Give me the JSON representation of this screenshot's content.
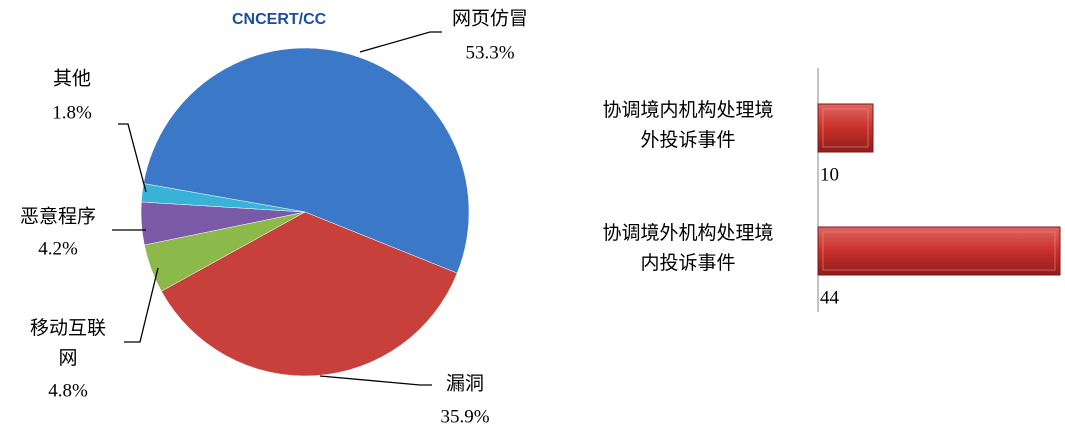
{
  "chart_data": [
    {
      "type": "pie",
      "logo": "CNCERT/CC",
      "categories": [
        "网页仿冒",
        "漏洞",
        "移动互联网",
        "恶意程序",
        "其他"
      ],
      "values": [
        53.3,
        35.9,
        4.8,
        4.2,
        1.8
      ],
      "value_labels": [
        "53.3%",
        "35.9%",
        "4.8%",
        "4.2%",
        "1.8%"
      ],
      "colors": [
        "#3b78c8",
        "#c8403c",
        "#8cba4a",
        "#7a5aa6",
        "#38b2d6"
      ]
    },
    {
      "type": "hbar",
      "categories": [
        "协调境内机构处理境外投诉事件",
        "协调境外机构处理境内投诉事件"
      ],
      "values": [
        10,
        44
      ],
      "color": "#c8302c"
    }
  ]
}
